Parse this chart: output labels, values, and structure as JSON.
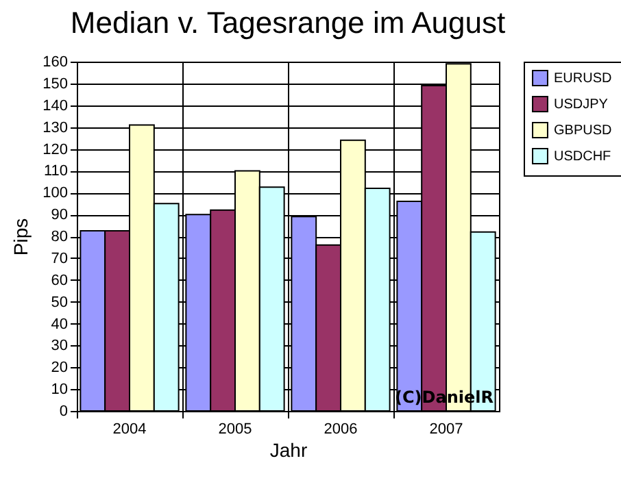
{
  "chart_data": {
    "type": "bar",
    "title": "Median v. Tagesrange im August",
    "xlabel": "Jahr",
    "ylabel": "Pips",
    "categories": [
      "2004",
      "2005",
      "2006",
      "2007"
    ],
    "series": [
      {
        "name": "EURUSD",
        "color": "#9999ff",
        "values": [
          82.5,
          90,
          89,
          96
        ]
      },
      {
        "name": "USDJPY",
        "color": "#993366",
        "values": [
          82.5,
          92,
          76,
          149
        ]
      },
      {
        "name": "GBPUSD",
        "color": "#ffffcc",
        "values": [
          131,
          110,
          124,
          159
        ]
      },
      {
        "name": "USDCHF",
        "color": "#ccffff",
        "values": [
          95,
          102.5,
          102,
          82
        ]
      }
    ],
    "ylim": [
      0,
      160
    ],
    "yticks": [
      0,
      10,
      20,
      30,
      40,
      50,
      60,
      70,
      80,
      90,
      100,
      110,
      120,
      130,
      140,
      150,
      160
    ],
    "grid": true,
    "legend": "right",
    "annotations": [
      "(C)DanielR"
    ]
  }
}
